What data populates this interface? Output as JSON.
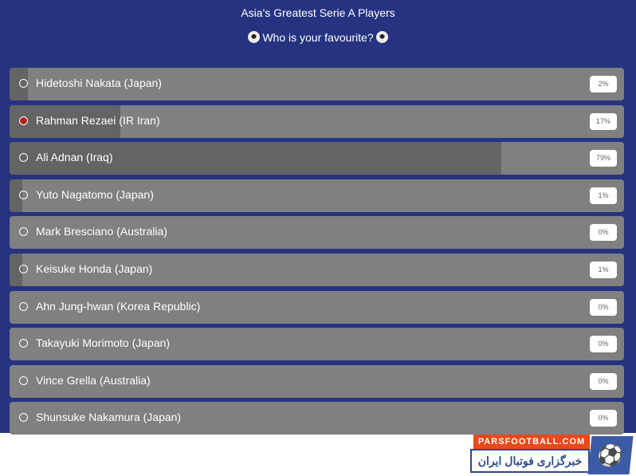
{
  "poll": {
    "title": "Asia's Greatest Serie A Players",
    "subtitle": "Who is your favourite?",
    "selected_index": 1,
    "colors": {
      "background": "#253381",
      "row": "#808080",
      "fill": "#646464",
      "selected": "#b22222"
    },
    "options": [
      {
        "label": "Hidetoshi Nakata (Japan)",
        "percent": 2,
        "percent_label": "2%"
      },
      {
        "label": "Rahman Rezaei (IR Iran)",
        "percent": 17,
        "percent_label": "17%"
      },
      {
        "label": "Ali Adnan (Iraq)",
        "percent": 79,
        "percent_label": "79%"
      },
      {
        "label": "Yuto Nagatomo (Japan)",
        "percent": 1,
        "percent_label": "1%"
      },
      {
        "label": "Mark Bresciano (Australia)",
        "percent": 0,
        "percent_label": "0%"
      },
      {
        "label": "Keisuke Honda (Japan)",
        "percent": 1,
        "percent_label": "1%"
      },
      {
        "label": "Ahn Jung-hwan (Korea Republic)",
        "percent": 0,
        "percent_label": "0%"
      },
      {
        "label": "Takayuki Morimoto (Japan)",
        "percent": 0,
        "percent_label": "0%"
      },
      {
        "label": "Vince Grella (Australia)",
        "percent": 0,
        "percent_label": "0%"
      },
      {
        "label": "Shunsuke Nakamura (Japan)",
        "percent": 0,
        "percent_label": "0%"
      }
    ]
  },
  "watermark": {
    "site": "PARSFOOTBALL.COM",
    "tagline": "خبرگزاری فوتبال ایران"
  }
}
